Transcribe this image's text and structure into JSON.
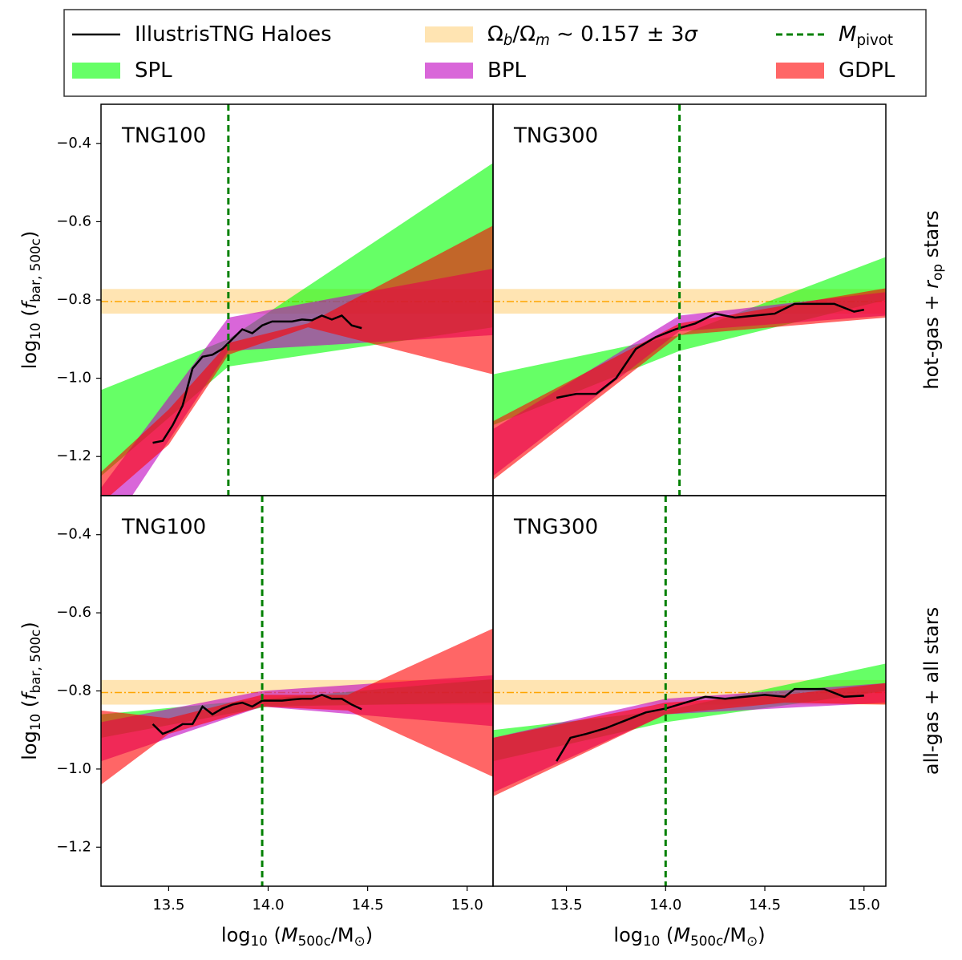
{
  "legend": [
    {
      "kind": "line",
      "color": "#000000",
      "label": [
        {
          "t": "IllustrisTNG Haloes"
        }
      ]
    },
    {
      "kind": "band",
      "color": "#ffa500",
      "alpha": 0.3,
      "label": [
        {
          "t": "Ω"
        },
        {
          "t": "b",
          "s": "subit"
        },
        {
          "t": "/Ω"
        },
        {
          "t": "m",
          "s": "subit"
        },
        {
          "t": " ∼ 0.157 ± 3"
        },
        {
          "t": "σ",
          "s": "it"
        }
      ]
    },
    {
      "kind": "dashed",
      "color": "#008000",
      "label": [
        {
          "t": "M",
          "s": "it"
        },
        {
          "t": "pivot",
          "s": "sub"
        }
      ]
    },
    {
      "kind": "fill",
      "color": "#00ff00",
      "alpha": 0.6,
      "label": [
        {
          "t": "SPL"
        }
      ]
    },
    {
      "kind": "fill",
      "color": "#bf00bf",
      "alpha": 0.6,
      "label": [
        {
          "t": "BPL"
        }
      ]
    },
    {
      "kind": "fill",
      "color": "#ff0000",
      "alpha": 0.6,
      "label": [
        {
          "t": "GDPL"
        }
      ]
    }
  ],
  "baryon_fraction": {
    "center": -0.804,
    "lower": -0.835,
    "upper": -0.772
  },
  "chart_data": [
    {
      "type": "band",
      "title": "TNG100",
      "xlim": [
        13.16,
        15.13
      ],
      "ylim": [
        -1.3,
        -0.3
      ],
      "yticks": [
        {
          "value": -1.2,
          "label": "−1.2"
        },
        {
          "value": -1.0,
          "label": "−1.0"
        },
        {
          "value": -0.8,
          "label": "−0.8"
        },
        {
          "value": -0.6,
          "label": "−0.6"
        },
        {
          "value": -0.4,
          "label": "−0.4"
        }
      ],
      "ylabel": [
        {
          "t": "log"
        },
        {
          "t": "10",
          "s": "sub"
        },
        {
          "t": " ("
        },
        {
          "t": "f",
          "s": "it"
        },
        {
          "t": "bar, 500c",
          "s": "sub"
        },
        {
          "t": ")"
        }
      ],
      "pivot": 13.8,
      "bands": [
        {
          "x": [
            13.16,
            13.8,
            15.13
          ],
          "upper": [
            -1.03,
            -0.9,
            -0.45
          ],
          "lower": [
            -1.25,
            -0.97,
            -0.87
          ]
        },
        {
          "x": [
            13.16,
            13.8,
            15.13
          ],
          "upper": [
            -1.28,
            -0.845,
            -0.72
          ],
          "lower": [
            -1.42,
            -0.93,
            -0.89
          ]
        },
        {
          "x": [
            13.16,
            13.5,
            13.8,
            14.2,
            15.13
          ],
          "upper": [
            -1.24,
            -1.08,
            -0.91,
            -0.86,
            -0.61
          ],
          "lower": [
            -1.32,
            -1.17,
            -0.94,
            -0.87,
            -0.99
          ]
        }
      ],
      "line": {
        "x": [
          13.42,
          13.47,
          13.52,
          13.57,
          13.62,
          13.67,
          13.72,
          13.77,
          13.82,
          13.87,
          13.92,
          13.97,
          14.02,
          14.07,
          14.12,
          14.17,
          14.22,
          14.27,
          14.32,
          14.37,
          14.42,
          14.47
        ],
        "values": [
          -1.165,
          -1.16,
          -1.12,
          -1.07,
          -0.975,
          -0.945,
          -0.94,
          -0.925,
          -0.9,
          -0.875,
          -0.885,
          -0.865,
          -0.855,
          -0.855,
          -0.855,
          -0.85,
          -0.852,
          -0.84,
          -0.85,
          -0.84,
          -0.865,
          -0.872
        ]
      }
    },
    {
      "type": "band",
      "title": "TNG300",
      "xlim": [
        13.13,
        15.11
      ],
      "ylim": [
        -1.3,
        -0.3
      ],
      "row_label": [
        {
          "t": "hot-gas + "
        },
        {
          "t": "r",
          "s": "it"
        },
        {
          "t": "op",
          "s": "sub"
        },
        {
          "t": " stars"
        }
      ],
      "pivot": 14.07,
      "bands": [
        {
          "x": [
            13.13,
            14.07,
            15.11
          ],
          "upper": [
            -0.99,
            -0.89,
            -0.69
          ],
          "lower": [
            -1.12,
            -0.93,
            -0.8
          ]
        },
        {
          "x": [
            13.13,
            14.07,
            15.11
          ],
          "upper": [
            -1.13,
            -0.84,
            -0.78
          ],
          "lower": [
            -1.25,
            -0.88,
            -0.84
          ]
        },
        {
          "x": [
            13.13,
            14.07,
            15.11
          ],
          "upper": [
            -1.11,
            -0.86,
            -0.77
          ],
          "lower": [
            -1.26,
            -0.89,
            -0.845
          ]
        }
      ],
      "line": {
        "x": [
          13.45,
          13.55,
          13.65,
          13.75,
          13.85,
          13.95,
          14.05,
          14.15,
          14.25,
          14.35,
          14.45,
          14.55,
          14.65,
          14.75,
          14.85,
          14.95,
          15.0
        ],
        "values": [
          -1.05,
          -1.04,
          -1.04,
          -1.0,
          -0.925,
          -0.895,
          -0.875,
          -0.86,
          -0.835,
          -0.845,
          -0.84,
          -0.835,
          -0.81,
          -0.81,
          -0.81,
          -0.83,
          -0.825
        ]
      }
    },
    {
      "type": "band",
      "title": "TNG100",
      "xlim": [
        13.16,
        15.13
      ],
      "ylim": [
        -1.3,
        -0.3
      ],
      "yticks": [
        {
          "value": -1.2,
          "label": "−1.2"
        },
        {
          "value": -1.0,
          "label": "−1.0"
        },
        {
          "value": -0.8,
          "label": "−0.8"
        },
        {
          "value": -0.6,
          "label": "−0.6"
        },
        {
          "value": -0.4,
          "label": "−0.4"
        }
      ],
      "xticks": [
        13.5,
        {
          "value": 14.0,
          "label": "14.0"
        },
        14.5,
        {
          "value": 15.0,
          "label": "15.0"
        }
      ],
      "ylabel": [
        {
          "t": "log"
        },
        {
          "t": "10",
          "s": "sub"
        },
        {
          "t": " ("
        },
        {
          "t": "f",
          "s": "it"
        },
        {
          "t": "bar, 500c",
          "s": "sub"
        },
        {
          "t": ")"
        }
      ],
      "xlabel": [
        {
          "t": "log"
        },
        {
          "t": "10",
          "s": "sub"
        },
        {
          "t": " ("
        },
        {
          "t": "M",
          "s": "it"
        },
        {
          "t": "500c",
          "s": "sub"
        },
        {
          "t": "/M"
        },
        {
          "t": "⊙",
          "s": "sub"
        },
        {
          "t": ")"
        }
      ],
      "pivot": 13.97,
      "bands": [
        {
          "x": [
            13.16,
            14.0,
            15.13
          ],
          "upper": [
            -0.86,
            -0.82,
            -0.77
          ],
          "lower": [
            -0.92,
            -0.84,
            -0.83
          ]
        },
        {
          "x": [
            13.16,
            13.97,
            15.13
          ],
          "upper": [
            -0.88,
            -0.8,
            -0.76
          ],
          "lower": [
            -0.98,
            -0.84,
            -0.89
          ]
        },
        {
          "x": [
            13.16,
            13.5,
            13.97,
            14.4,
            15.13
          ],
          "upper": [
            -0.85,
            -0.87,
            -0.81,
            -0.81,
            -0.64
          ],
          "lower": [
            -1.04,
            -0.91,
            -0.84,
            -0.85,
            -1.02
          ]
        }
      ],
      "line": {
        "x": [
          13.42,
          13.47,
          13.52,
          13.57,
          13.62,
          13.67,
          13.72,
          13.77,
          13.82,
          13.87,
          13.92,
          13.97,
          14.02,
          14.07,
          14.12,
          14.17,
          14.22,
          14.27,
          14.32,
          14.37,
          14.42,
          14.47
        ],
        "values": [
          -0.885,
          -0.91,
          -0.9,
          -0.885,
          -0.885,
          -0.84,
          -0.86,
          -0.845,
          -0.835,
          -0.83,
          -0.84,
          -0.825,
          -0.825,
          -0.825,
          -0.822,
          -0.82,
          -0.82,
          -0.81,
          -0.82,
          -0.82,
          -0.835,
          -0.847
        ]
      }
    },
    {
      "type": "band",
      "title": "TNG300",
      "xlim": [
        13.13,
        15.11
      ],
      "ylim": [
        -1.3,
        -0.3
      ],
      "xticks": [
        13.5,
        {
          "value": 14.0,
          "label": "14.0"
        },
        14.5,
        {
          "value": 15.0,
          "label": "15.0"
        }
      ],
      "xlabel": [
        {
          "t": "log"
        },
        {
          "t": "10",
          "s": "sub"
        },
        {
          "t": " ("
        },
        {
          "t": "M",
          "s": "it"
        },
        {
          "t": "500c",
          "s": "sub"
        },
        {
          "t": "/M"
        },
        {
          "t": "⊙",
          "s": "sub"
        },
        {
          "t": ")"
        }
      ],
      "row_label": [
        {
          "t": "all-gas + all stars"
        }
      ],
      "pivot": 14.0,
      "bands": [
        {
          "x": [
            13.13,
            14.0,
            15.11
          ],
          "upper": [
            -0.9,
            -0.85,
            -0.73
          ],
          "lower": [
            -0.98,
            -0.88,
            -0.8
          ]
        },
        {
          "x": [
            13.13,
            14.0,
            15.11
          ],
          "upper": [
            -0.92,
            -0.82,
            -0.78
          ],
          "lower": [
            -1.06,
            -0.86,
            -0.83
          ]
        },
        {
          "x": [
            13.13,
            14.0,
            14.6,
            15.11
          ],
          "upper": [
            -0.92,
            -0.83,
            -0.81,
            -0.78
          ],
          "lower": [
            -1.07,
            -0.86,
            -0.83,
            -0.835
          ]
        }
      ],
      "line": {
        "x": [
          13.45,
          13.52,
          13.6,
          13.7,
          13.8,
          13.9,
          14.0,
          14.1,
          14.2,
          14.3,
          14.4,
          14.5,
          14.6,
          14.65,
          14.8,
          14.9,
          15.0
        ],
        "values": [
          -0.98,
          -0.92,
          -0.91,
          -0.895,
          -0.875,
          -0.855,
          -0.845,
          -0.83,
          -0.815,
          -0.82,
          -0.815,
          -0.81,
          -0.815,
          -0.795,
          -0.795,
          -0.815,
          -0.812
        ]
      }
    }
  ]
}
